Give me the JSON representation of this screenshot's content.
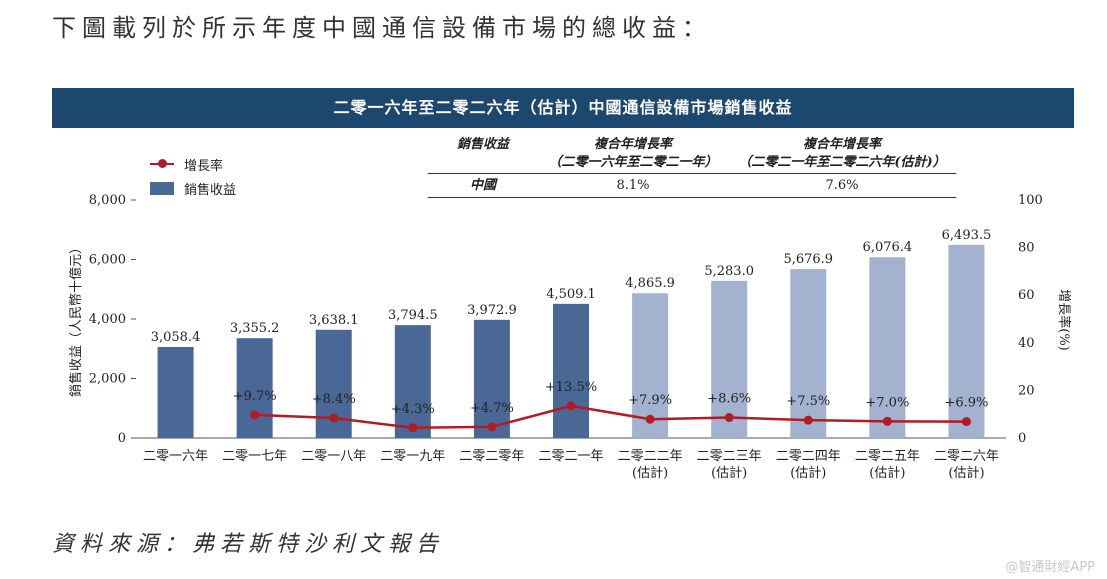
{
  "intro_text": "下圖載列於所示年度中國通信設備市場的總收益：",
  "chart_data": {
    "type": "bar",
    "title": "二零一六年至二零二六年（估計）中國通信設備市場銷售收益",
    "categories": [
      [
        "二零一六年"
      ],
      [
        "二零一七年"
      ],
      [
        "二零一八年"
      ],
      [
        "二零一九年"
      ],
      [
        "二零二零年"
      ],
      [
        "二零二一年"
      ],
      [
        "二零二二年",
        "(估計)"
      ],
      [
        "二零二三年",
        "(估計)"
      ],
      [
        "二零二四年",
        "(估計)"
      ],
      [
        "二零二五年",
        "(估計)"
      ],
      [
        "二零二六年",
        "(估計)"
      ]
    ],
    "series": [
      {
        "name": "銷售收益",
        "axis": "left",
        "values": [
          3058.4,
          3355.2,
          3638.1,
          3794.5,
          3972.9,
          4509.1,
          4865.9,
          5283.0,
          5676.9,
          6076.4,
          6493.5
        ],
        "labels": [
          "3,058.4",
          "3,355.2",
          "3,638.1",
          "3,794.5",
          "3,972.9",
          "4,509.1",
          "4,865.9",
          "5,283.0",
          "5,676.9",
          "6,076.4",
          "6,493.5"
        ],
        "estimated_from_index": 6
      },
      {
        "name": "增長率",
        "axis": "right",
        "type": "line",
        "values": [
          null,
          9.7,
          8.4,
          4.3,
          4.7,
          13.5,
          7.9,
          8.6,
          7.5,
          7.0,
          6.9
        ],
        "labels": [
          "",
          "+9.7%",
          "+8.4%",
          "+4.3%",
          "+4.7%",
          "+13.5%",
          "+7.9%",
          "+8.6%",
          "+7.5%",
          "+7.0%",
          "+6.9%"
        ]
      }
    ],
    "ylabel": "銷售收益（人民幣十億元）",
    "ylim": [
      0,
      8000
    ],
    "yticks": [
      0,
      2000,
      4000,
      6000,
      8000
    ],
    "ytick_labels": [
      "0",
      "2,000",
      "4,000",
      "6,000",
      "8,000"
    ],
    "y2label": "增長率(%)",
    "y2lim": [
      0,
      100
    ],
    "y2ticks": [
      0,
      20,
      40,
      60,
      80,
      100
    ],
    "y2tick_labels": [
      "0",
      "20",
      "40",
      "60",
      "80",
      "100"
    ],
    "legend": [
      {
        "name": "增長率"
      },
      {
        "name": "銷售收益"
      }
    ],
    "colors": {
      "bar_actual": "#4a6896",
      "bar_estimate": "#a3b3cf",
      "growth_line": "#b21b24",
      "banner": "#1c4870"
    }
  },
  "cagr_table": {
    "headers": [
      [
        "銷售收益"
      ],
      [
        "複合年增長率",
        "（二零一六年至二零二一年）"
      ],
      [
        "複合年增長率",
        "（二零二一年至二零二六年(估計)）"
      ]
    ],
    "rows": [
      {
        "region": "中國",
        "cagr_2016_2021": "8.1%",
        "cagr_2021_2026": "7.6%"
      }
    ]
  },
  "source_text": "資料來源：弗若斯特沙利文報告",
  "watermark": "@智通財經APP"
}
